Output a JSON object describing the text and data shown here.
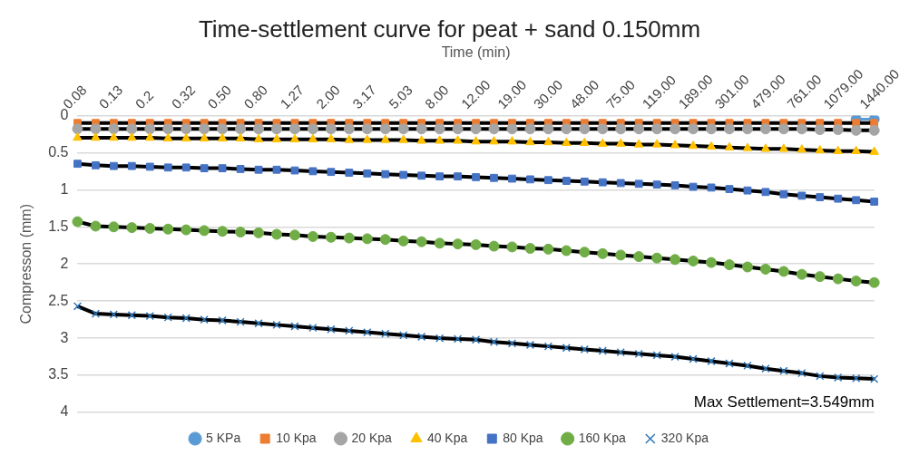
{
  "chart_data": {
    "type": "line",
    "title": "Time-settlement curve for peat + sand 0.150mm",
    "xlabel": "Time (min)",
    "ylabel": "Compresson (mm)",
    "categories": [
      "0.08",
      null,
      "0.13",
      null,
      "0.2",
      null,
      "0.32",
      null,
      "0.50",
      null,
      "0.80",
      null,
      "1.27",
      null,
      "2.00",
      null,
      "3.17",
      null,
      "5.03",
      null,
      "8.00",
      null,
      "12.00",
      null,
      "19.00",
      null,
      "30.00",
      null,
      "48.00",
      null,
      "75.00",
      null,
      "119.00",
      null,
      "189.00",
      null,
      "301.00",
      null,
      "479.00",
      null,
      "761.00",
      null,
      "1079.00",
      null,
      "1440.00"
    ],
    "series": [
      {
        "name": "5 KPa",
        "color": "#5b9bd5",
        "marker": "circle",
        "values": [
          null,
          null,
          null,
          null,
          null,
          null,
          null,
          null,
          null,
          null,
          null,
          null,
          null,
          null,
          null,
          null,
          null,
          null,
          null,
          null,
          null,
          null,
          null,
          null,
          null,
          null,
          null,
          null,
          null,
          null,
          null,
          null,
          null,
          null,
          null,
          null,
          null,
          null,
          null,
          null,
          null,
          null,
          null,
          0.05,
          0.05
        ]
      },
      {
        "name": "10 Kpa",
        "color": "#ed7d31",
        "marker": "square",
        "values": [
          0.1,
          0.1,
          0.1,
          0.1,
          0.1,
          0.1,
          0.1,
          0.1,
          0.1,
          0.1,
          0.1,
          0.1,
          0.1,
          0.1,
          0.1,
          0.1,
          0.1,
          0.1,
          0.1,
          0.1,
          0.1,
          0.1,
          0.1,
          0.1,
          0.1,
          0.1,
          0.1,
          0.1,
          0.1,
          0.1,
          0.1,
          0.1,
          0.1,
          0.1,
          0.1,
          0.1,
          0.1,
          0.1,
          0.1,
          0.1,
          0.1,
          0.1,
          0.1,
          0.1,
          0.1
        ]
      },
      {
        "name": "20 Kpa",
        "color": "#a5a5a5",
        "marker": "circle",
        "values": [
          0.18,
          0.18,
          0.18,
          0.18,
          0.18,
          0.18,
          0.18,
          0.18,
          0.18,
          0.18,
          0.18,
          0.18,
          0.18,
          0.18,
          0.18,
          0.18,
          0.18,
          0.18,
          0.18,
          0.18,
          0.18,
          0.18,
          0.18,
          0.18,
          0.18,
          0.18,
          0.18,
          0.18,
          0.18,
          0.18,
          0.18,
          0.18,
          0.18,
          0.18,
          0.18,
          0.18,
          0.18,
          0.18,
          0.18,
          0.18,
          0.18,
          0.19,
          0.19,
          0.2,
          0.2
        ]
      },
      {
        "name": "40 Kpa",
        "color": "#ffc000",
        "marker": "triangle",
        "values": [
          0.3,
          0.3,
          0.3,
          0.3,
          0.3,
          0.31,
          0.31,
          0.31,
          0.31,
          0.31,
          0.32,
          0.32,
          0.32,
          0.32,
          0.32,
          0.33,
          0.33,
          0.33,
          0.33,
          0.34,
          0.34,
          0.34,
          0.35,
          0.35,
          0.35,
          0.36,
          0.36,
          0.37,
          0.37,
          0.38,
          0.38,
          0.39,
          0.39,
          0.4,
          0.41,
          0.42,
          0.43,
          0.44,
          0.45,
          0.45,
          0.46,
          0.47,
          0.48,
          0.48,
          0.49
        ]
      },
      {
        "name": "80 Kpa",
        "color": "#4472c4",
        "marker": "square",
        "values": [
          0.65,
          0.67,
          0.68,
          0.68,
          0.69,
          0.7,
          0.7,
          0.71,
          0.71,
          0.72,
          0.73,
          0.73,
          0.74,
          0.75,
          0.76,
          0.77,
          0.78,
          0.79,
          0.8,
          0.81,
          0.82,
          0.82,
          0.83,
          0.84,
          0.85,
          0.86,
          0.87,
          0.88,
          0.89,
          0.9,
          0.91,
          0.92,
          0.93,
          0.94,
          0.96,
          0.97,
          0.99,
          1.01,
          1.03,
          1.06,
          1.08,
          1.1,
          1.12,
          1.14,
          1.16
        ]
      },
      {
        "name": "160 Kpa",
        "color": "#70ad47",
        "marker": "circle",
        "values": [
          1.43,
          1.49,
          1.5,
          1.51,
          1.52,
          1.53,
          1.54,
          1.55,
          1.56,
          1.57,
          1.58,
          1.6,
          1.61,
          1.63,
          1.64,
          1.65,
          1.66,
          1.67,
          1.69,
          1.7,
          1.72,
          1.73,
          1.74,
          1.76,
          1.77,
          1.79,
          1.8,
          1.82,
          1.84,
          1.86,
          1.88,
          1.9,
          1.92,
          1.94,
          1.96,
          1.98,
          2.01,
          2.04,
          2.07,
          2.1,
          2.14,
          2.17,
          2.2,
          2.23,
          2.25
        ]
      },
      {
        "name": "320 Kpa",
        "color": "#2e75b6",
        "marker": "cross",
        "values": [
          2.57,
          2.67,
          2.68,
          2.69,
          2.7,
          2.72,
          2.73,
          2.75,
          2.76,
          2.78,
          2.8,
          2.82,
          2.84,
          2.86,
          2.88,
          2.9,
          2.92,
          2.94,
          2.96,
          2.98,
          3.0,
          3.01,
          3.02,
          3.05,
          3.07,
          3.09,
          3.11,
          3.13,
          3.15,
          3.17,
          3.19,
          3.21,
          3.23,
          3.25,
          3.28,
          3.31,
          3.34,
          3.37,
          3.41,
          3.44,
          3.47,
          3.51,
          3.53,
          3.54,
          3.549
        ]
      }
    ],
    "ylim": [
      4,
      0
    ],
    "yticks": [
      0,
      0.5,
      1,
      1.5,
      2,
      2.5,
      3,
      3.5,
      4
    ],
    "grid": "y",
    "legend": "bottom",
    "annotations": [
      "Max Settlement=3.549mm"
    ]
  }
}
